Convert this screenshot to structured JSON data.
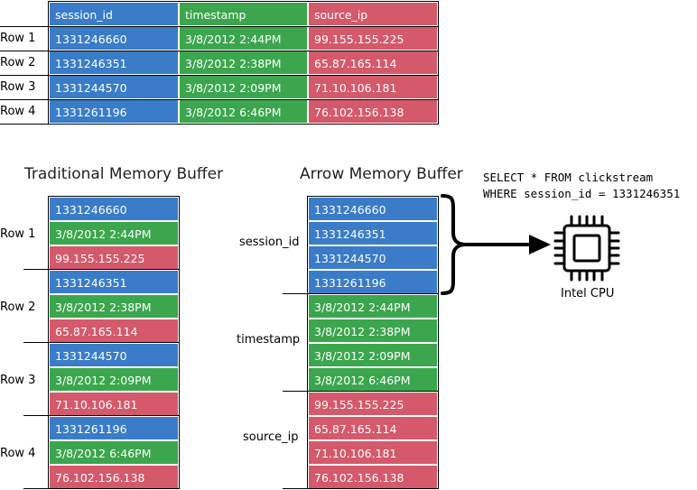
{
  "top_table": {
    "headers": [
      "session_id",
      "timestamp",
      "source_ip"
    ],
    "row_labels": [
      "Row 1",
      "Row 2",
      "Row 3",
      "Row 4"
    ],
    "rows": [
      [
        "1331246660",
        "3/8/2012  2:44PM",
        "99.155.155.225"
      ],
      [
        "1331246351",
        "3/8/2012  2:38PM",
        "65.87.165.114"
      ],
      [
        "1331244570",
        "3/8/2012  2:09PM",
        "71.10.106.181"
      ],
      [
        "1331261196",
        "3/8/2012  6:46PM",
        "76.102.156.138"
      ]
    ]
  },
  "traditional": {
    "title": "Traditional Memory Buffer",
    "row_labels": [
      "Row 1",
      "Row 2",
      "Row 3",
      "Row 4"
    ],
    "cells": [
      "1331246660",
      "3/8/2012  2:44PM",
      "99.155.155.225",
      "1331246351",
      "3/8/2012  2:38PM",
      "65.87.165.114",
      "1331244570",
      "3/8/2012  2:09PM",
      "71.10.106.181",
      "1331261196",
      "3/8/2012  6:46PM",
      "76.102.156.138"
    ]
  },
  "arrow": {
    "title": "Arrow Memory Buffer",
    "group_labels": [
      "session_id",
      "timestamp",
      "source_ip"
    ],
    "cells": [
      "1331246660",
      "1331246351",
      "1331244570",
      "1331261196",
      "3/8/2012  2:44PM",
      "3/8/2012  2:38PM",
      "3/8/2012  2:09PM",
      "3/8/2012  6:46PM",
      "99.155.155.225",
      "65.87.165.114",
      "71.10.106.181",
      "76.102.156.138"
    ]
  },
  "query": {
    "line1": "SELECT * FROM clickstream",
    "line2": "WHERE session_id = 1331246351"
  },
  "cpu": {
    "label": "Intel CPU",
    "icon": "cpu-chip-icon"
  },
  "colors": {
    "blue": "#3a7cc7",
    "green": "#3ba64d",
    "red": "#d4596b"
  }
}
